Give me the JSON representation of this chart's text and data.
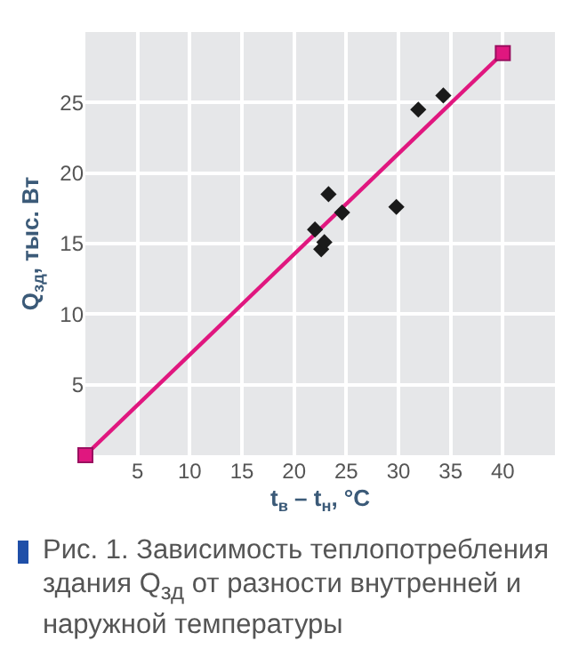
{
  "chart_data": {
    "type": "scatter",
    "xlabel": "t$_{в}$ – t$_{н}$, °C",
    "ylabel": "Q$_{зд}$, тыс. Вт",
    "series": [
      {
        "type": "line",
        "color": "#e0177f",
        "marker": "square",
        "x": [
          0,
          40
        ],
        "values": [
          0,
          28.5
        ]
      },
      {
        "type": "scatter",
        "color": "#1a1a1a",
        "marker": "diamond",
        "x": [
          22.0,
          22.6,
          22.9,
          23.3,
          24.6,
          29.8,
          31.9,
          34.3
        ],
        "values": [
          16.0,
          14.6,
          15.1,
          18.5,
          17.2,
          17.6,
          24.5,
          25.5
        ]
      }
    ],
    "xlim": [
      0,
      45
    ],
    "ylim": [
      0,
      30
    ],
    "xticks": [
      5,
      10,
      15,
      20,
      25,
      30,
      35,
      40
    ],
    "yticks": [
      5,
      10,
      15,
      20,
      25
    ],
    "grid": true,
    "annotations": [
      "Рис. 1. Зависимость теплопотребления здания Q$_{зд}$ от разности внутренней и наружной температуры"
    ]
  }
}
